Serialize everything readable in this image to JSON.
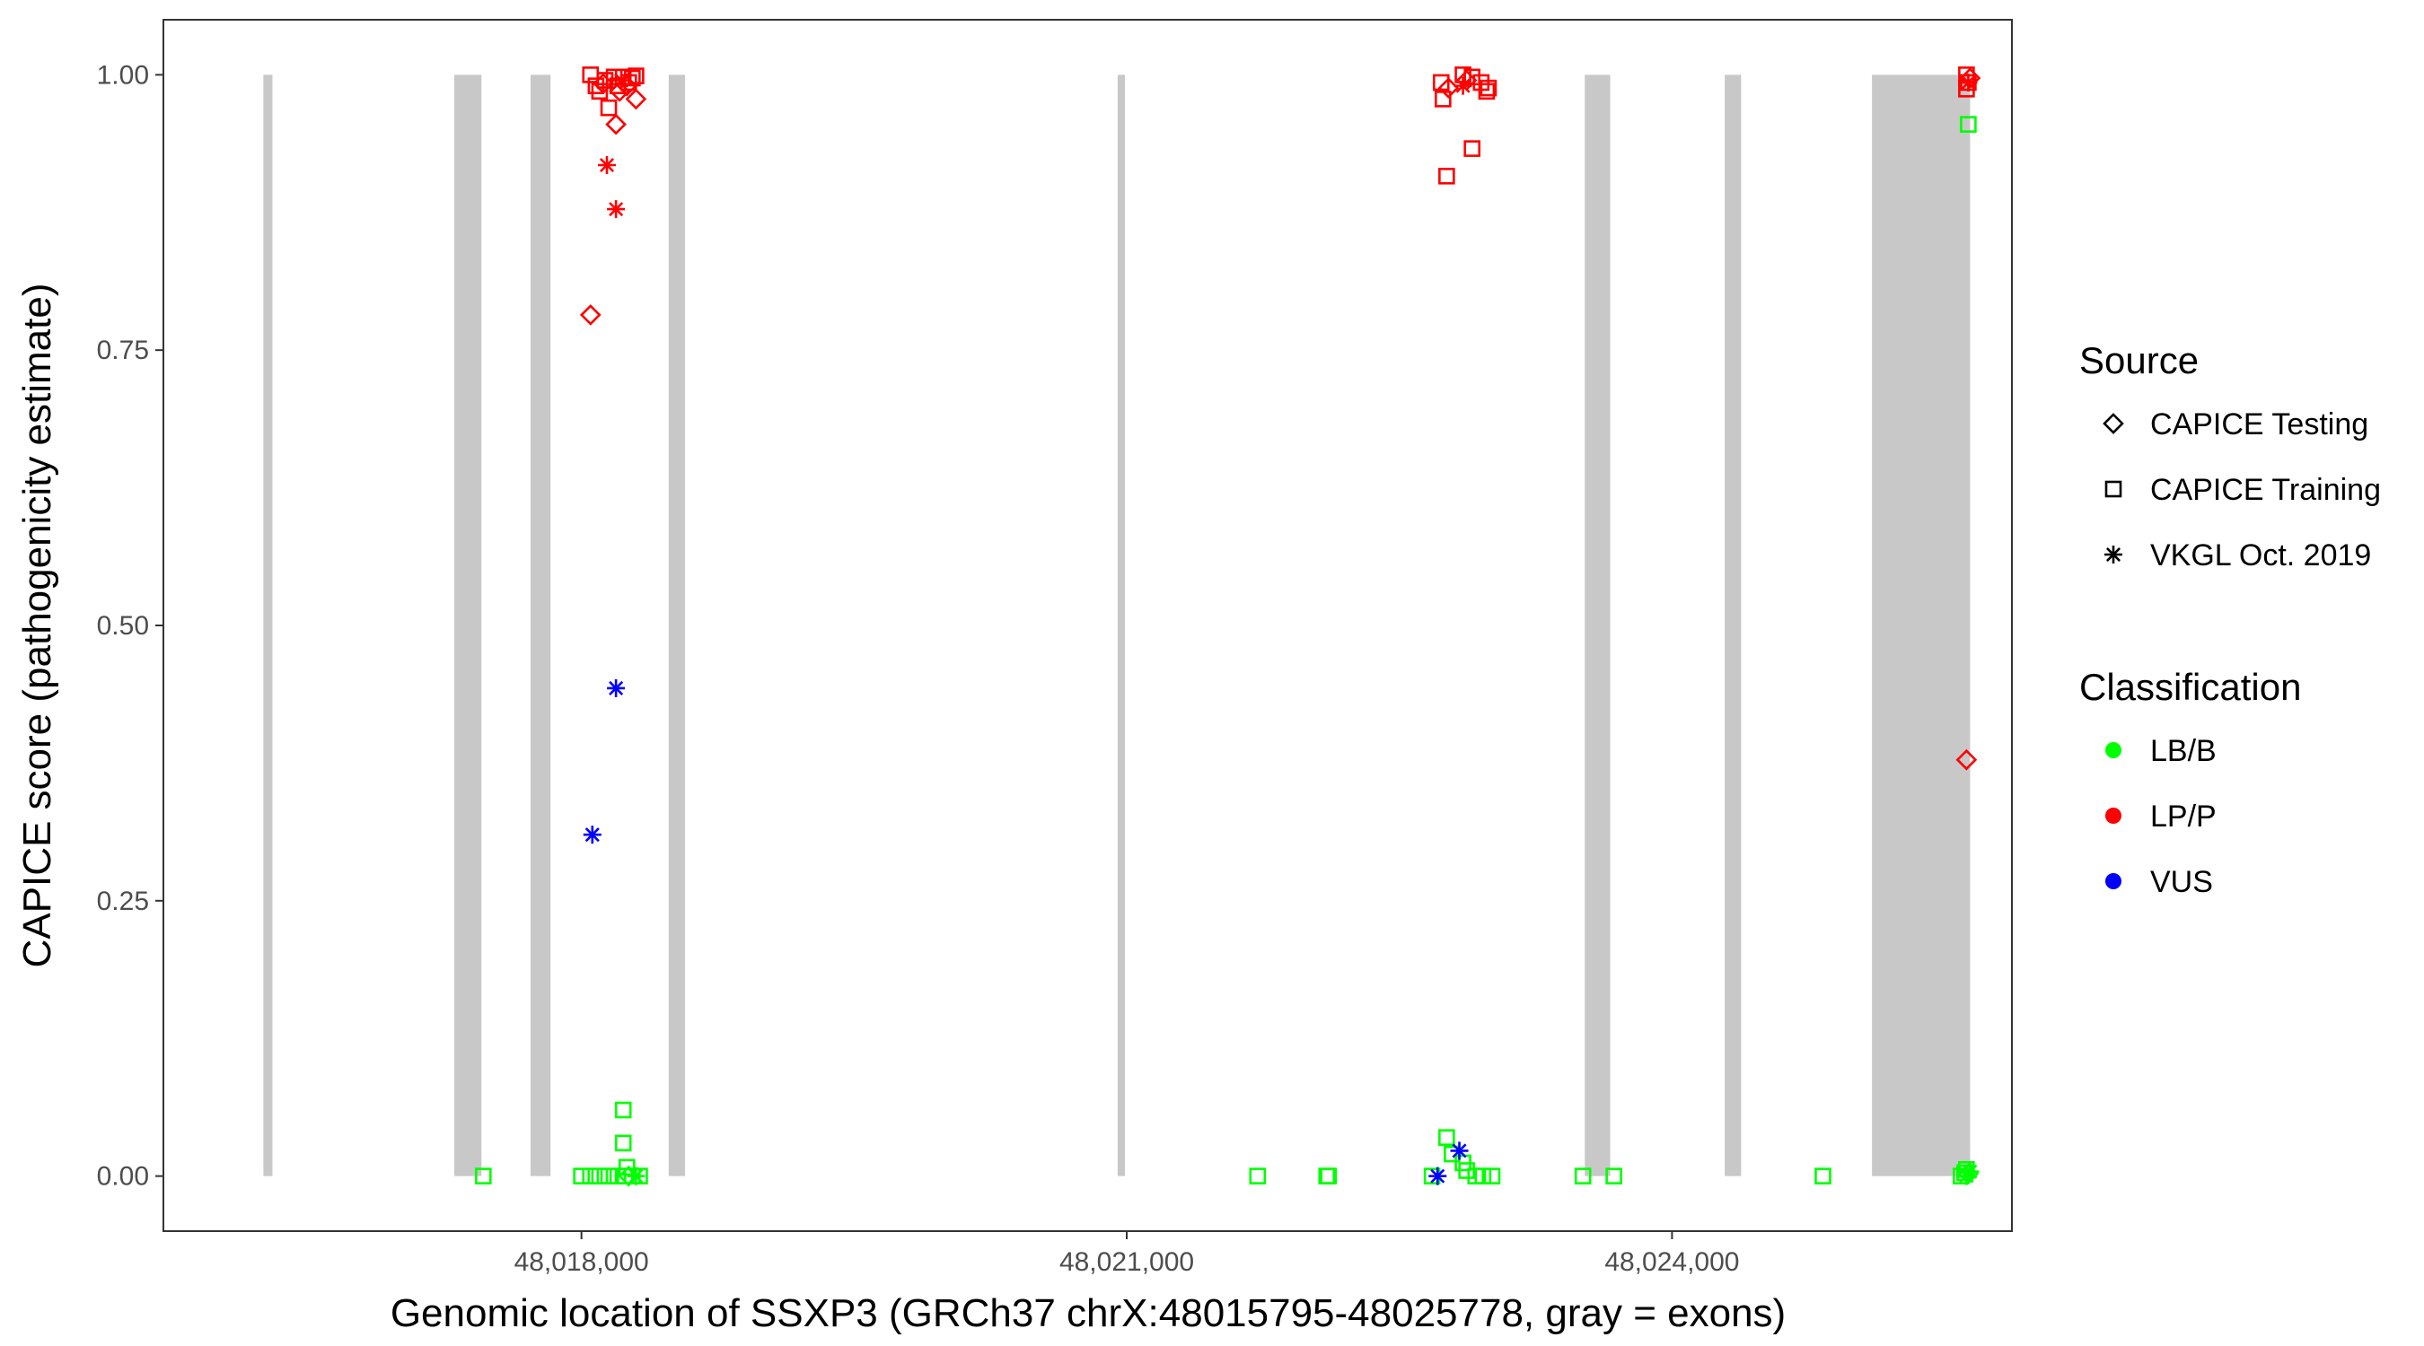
{
  "chart_data": {
    "type": "scatter",
    "xlabel": "Genomic location of SSXP3 (GRCh37 chrX:48015795-48025778, gray = exons)",
    "ylabel": "CAPICE score (pathogenicity estimate)",
    "xlim": [
      48015700,
      48025870
    ],
    "ylim": [
      -0.05,
      1.05
    ],
    "x_ticks": [
      48018000,
      48021000,
      48024000
    ],
    "x_tick_labels": [
      "48,018,000",
      "48,021,000",
      "48,024,000"
    ],
    "y_ticks": [
      0,
      0.25,
      0.5,
      0.75,
      1.0
    ],
    "y_tick_labels": [
      "0.00",
      "0.25",
      "0.50",
      "0.75",
      "1.00"
    ],
    "grid": false,
    "exons": [
      [
        48016250,
        48016300
      ],
      [
        48017300,
        48017450
      ],
      [
        48017720,
        48017830
      ],
      [
        48018480,
        48018570
      ],
      [
        48020950,
        48020990
      ],
      [
        48023520,
        48023660
      ],
      [
        48024290,
        48024380
      ],
      [
        48025100,
        48025640
      ]
    ],
    "legend": {
      "position": "right",
      "source_title": "Source",
      "source_items": [
        {
          "label": "CAPICE Testing",
          "shape": "diamond"
        },
        {
          "label": "CAPICE Training",
          "shape": "square"
        },
        {
          "label": "VKGL Oct. 2019",
          "shape": "asterisk"
        }
      ],
      "class_title": "Classification",
      "class_items": [
        {
          "label": "LB/B",
          "color": "#00ff00"
        },
        {
          "label": "LP/P",
          "color": "#ff0000"
        },
        {
          "label": "VUS",
          "color": "#0000ff"
        }
      ]
    },
    "colors": {
      "LB/B": "#00ff00",
      "LP/P": "#ff0000",
      "VUS": "#0000ff",
      "exon": "#c8c8c8"
    },
    "points": [
      {
        "x": 48018050,
        "y": 1.0,
        "source": "CAPICE Training",
        "class": "LP/P"
      },
      {
        "x": 48018080,
        "y": 0.99,
        "source": "CAPICE Training",
        "class": "LP/P"
      },
      {
        "x": 48018100,
        "y": 0.985,
        "source": "CAPICE Training",
        "class": "LP/P"
      },
      {
        "x": 48018130,
        "y": 0.995,
        "source": "CAPICE Training",
        "class": "LP/P"
      },
      {
        "x": 48018150,
        "y": 0.97,
        "source": "CAPICE Training",
        "class": "LP/P"
      },
      {
        "x": 48018180,
        "y": 0.998,
        "source": "CAPICE Training",
        "class": "LP/P"
      },
      {
        "x": 48018200,
        "y": 0.99,
        "source": "CAPICE Training",
        "class": "LP/P"
      },
      {
        "x": 48018230,
        "y": 0.998,
        "source": "CAPICE Training",
        "class": "LP/P"
      },
      {
        "x": 48018260,
        "y": 0.993,
        "source": "CAPICE Training",
        "class": "LP/P"
      },
      {
        "x": 48018280,
        "y": 0.997,
        "source": "CAPICE Training",
        "class": "LP/P"
      },
      {
        "x": 48018300,
        "y": 0.999,
        "source": "CAPICE Training",
        "class": "LP/P"
      },
      {
        "x": 48018120,
        "y": 0.992,
        "source": "CAPICE Testing",
        "class": "LP/P"
      },
      {
        "x": 48018210,
        "y": 0.985,
        "source": "CAPICE Testing",
        "class": "LP/P"
      },
      {
        "x": 48018250,
        "y": 0.99,
        "source": "CAPICE Testing",
        "class": "LP/P"
      },
      {
        "x": 48018300,
        "y": 0.978,
        "source": "CAPICE Testing",
        "class": "LP/P"
      },
      {
        "x": 48018190,
        "y": 0.955,
        "source": "CAPICE Testing",
        "class": "LP/P"
      },
      {
        "x": 48018050,
        "y": 0.782,
        "source": "CAPICE Testing",
        "class": "LP/P"
      },
      {
        "x": 48018220,
        "y": 0.995,
        "source": "VKGL Oct. 2019",
        "class": "LP/P"
      },
      {
        "x": 48018140,
        "y": 0.918,
        "source": "VKGL Oct. 2019",
        "class": "LP/P"
      },
      {
        "x": 48018190,
        "y": 0.878,
        "source": "VKGL Oct. 2019",
        "class": "LP/P"
      },
      {
        "x": 48018190,
        "y": 0.443,
        "source": "VKGL Oct. 2019",
        "class": "VUS"
      },
      {
        "x": 48018060,
        "y": 0.31,
        "source": "VKGL Oct. 2019",
        "class": "VUS"
      },
      {
        "x": 48017460,
        "y": 0.0,
        "source": "CAPICE Training",
        "class": "LB/B"
      },
      {
        "x": 48018000,
        "y": 0.0,
        "source": "CAPICE Training",
        "class": "LB/B"
      },
      {
        "x": 48018050,
        "y": 0.0,
        "source": "CAPICE Training",
        "class": "LB/B"
      },
      {
        "x": 48018100,
        "y": 0.0,
        "source": "CAPICE Training",
        "class": "LB/B"
      },
      {
        "x": 48018150,
        "y": 0.0,
        "source": "CAPICE Training",
        "class": "LB/B"
      },
      {
        "x": 48018200,
        "y": 0.0,
        "source": "CAPICE Training",
        "class": "LB/B"
      },
      {
        "x": 48018240,
        "y": 0.0,
        "source": "CAPICE Training",
        "class": "LB/B"
      },
      {
        "x": 48018280,
        "y": 0.0,
        "source": "CAPICE Training",
        "class": "LB/B"
      },
      {
        "x": 48018320,
        "y": 0.0,
        "source": "CAPICE Training",
        "class": "LB/B"
      },
      {
        "x": 48018230,
        "y": 0.06,
        "source": "CAPICE Training",
        "class": "LB/B"
      },
      {
        "x": 48018230,
        "y": 0.03,
        "source": "CAPICE Training",
        "class": "LB/B"
      },
      {
        "x": 48018250,
        "y": 0.008,
        "source": "CAPICE Training",
        "class": "LB/B"
      },
      {
        "x": 48018260,
        "y": 0.0,
        "source": "CAPICE Testing",
        "class": "LB/B"
      },
      {
        "x": 48018300,
        "y": 0.0,
        "source": "VKGL Oct. 2019",
        "class": "LB/B"
      },
      {
        "x": 48022730,
        "y": 0.993,
        "source": "CAPICE Training",
        "class": "LP/P"
      },
      {
        "x": 48022850,
        "y": 1.0,
        "source": "CAPICE Training",
        "class": "LP/P"
      },
      {
        "x": 48022900,
        "y": 0.998,
        "source": "CAPICE Training",
        "class": "LP/P"
      },
      {
        "x": 48022950,
        "y": 0.993,
        "source": "CAPICE Training",
        "class": "LP/P"
      },
      {
        "x": 48022980,
        "y": 0.985,
        "source": "CAPICE Training",
        "class": "LP/P"
      },
      {
        "x": 48022990,
        "y": 0.988,
        "source": "CAPICE Training",
        "class": "LP/P"
      },
      {
        "x": 48022740,
        "y": 0.978,
        "source": "CAPICE Training",
        "class": "LP/P"
      },
      {
        "x": 48022900,
        "y": 0.933,
        "source": "CAPICE Training",
        "class": "LP/P"
      },
      {
        "x": 48022760,
        "y": 0.908,
        "source": "CAPICE Training",
        "class": "LP/P"
      },
      {
        "x": 48022870,
        "y": 0.995,
        "source": "CAPICE Testing",
        "class": "LP/P"
      },
      {
        "x": 48022770,
        "y": 0.988,
        "source": "CAPICE Testing",
        "class": "LP/P"
      },
      {
        "x": 48022850,
        "y": 0.99,
        "source": "VKGL Oct. 2019",
        "class": "LP/P"
      },
      {
        "x": 48022760,
        "y": 0.035,
        "source": "CAPICE Training",
        "class": "LB/B"
      },
      {
        "x": 48022790,
        "y": 0.02,
        "source": "CAPICE Training",
        "class": "LB/B"
      },
      {
        "x": 48022850,
        "y": 0.012,
        "source": "CAPICE Training",
        "class": "LB/B"
      },
      {
        "x": 48022870,
        "y": 0.005,
        "source": "CAPICE Training",
        "class": "LB/B"
      },
      {
        "x": 48022680,
        "y": 0.0,
        "source": "CAPICE Training",
        "class": "LB/B"
      },
      {
        "x": 48022920,
        "y": 0.0,
        "source": "CAPICE Training",
        "class": "LB/B"
      },
      {
        "x": 48022960,
        "y": 0.0,
        "source": "CAPICE Training",
        "class": "LB/B"
      },
      {
        "x": 48023010,
        "y": 0.0,
        "source": "CAPICE Training",
        "class": "LB/B"
      },
      {
        "x": 48022830,
        "y": 0.023,
        "source": "VKGL Oct. 2019",
        "class": "VUS"
      },
      {
        "x": 48022710,
        "y": 0.0,
        "source": "VKGL Oct. 2019",
        "class": "VUS"
      },
      {
        "x": 48021720,
        "y": 0.0,
        "source": "CAPICE Training",
        "class": "LB/B"
      },
      {
        "x": 48022100,
        "y": 0.0,
        "source": "CAPICE Training",
        "class": "LB/B"
      },
      {
        "x": 48022110,
        "y": 0.0,
        "source": "CAPICE Training",
        "class": "LB/B"
      },
      {
        "x": 48023510,
        "y": 0.0,
        "source": "CAPICE Training",
        "class": "LB/B"
      },
      {
        "x": 48023680,
        "y": 0.0,
        "source": "CAPICE Training",
        "class": "LB/B"
      },
      {
        "x": 48024830,
        "y": 0.0,
        "source": "CAPICE Training",
        "class": "LB/B"
      },
      {
        "x": 48025620,
        "y": 1.0,
        "source": "CAPICE Training",
        "class": "LP/P"
      },
      {
        "x": 48025630,
        "y": 0.993,
        "source": "CAPICE Training",
        "class": "LP/P"
      },
      {
        "x": 48025620,
        "y": 0.987,
        "source": "CAPICE Training",
        "class": "LP/P"
      },
      {
        "x": 48025640,
        "y": 0.997,
        "source": "CAPICE Testing",
        "class": "LP/P"
      },
      {
        "x": 48025630,
        "y": 0.993,
        "source": "VKGL Oct. 2019",
        "class": "LP/P"
      },
      {
        "x": 48025620,
        "y": 0.378,
        "source": "CAPICE Testing",
        "class": "LP/P"
      },
      {
        "x": 48025630,
        "y": 0.955,
        "source": "CAPICE Training",
        "class": "LB/B"
      },
      {
        "x": 48025590,
        "y": 0.0,
        "source": "CAPICE Training",
        "class": "LB/B"
      },
      {
        "x": 48025610,
        "y": 0.003,
        "source": "CAPICE Training",
        "class": "LB/B"
      },
      {
        "x": 48025620,
        "y": 0.006,
        "source": "CAPICE Training",
        "class": "LB/B"
      },
      {
        "x": 48025630,
        "y": 0.002,
        "source": "CAPICE Testing",
        "class": "LB/B"
      },
      {
        "x": 48025620,
        "y": 0.0,
        "source": "VKGL Oct. 2019",
        "class": "LB/B"
      },
      {
        "x": 48025640,
        "y": 0.004,
        "source": "VKGL Oct. 2019",
        "class": "LB/B"
      }
    ]
  }
}
